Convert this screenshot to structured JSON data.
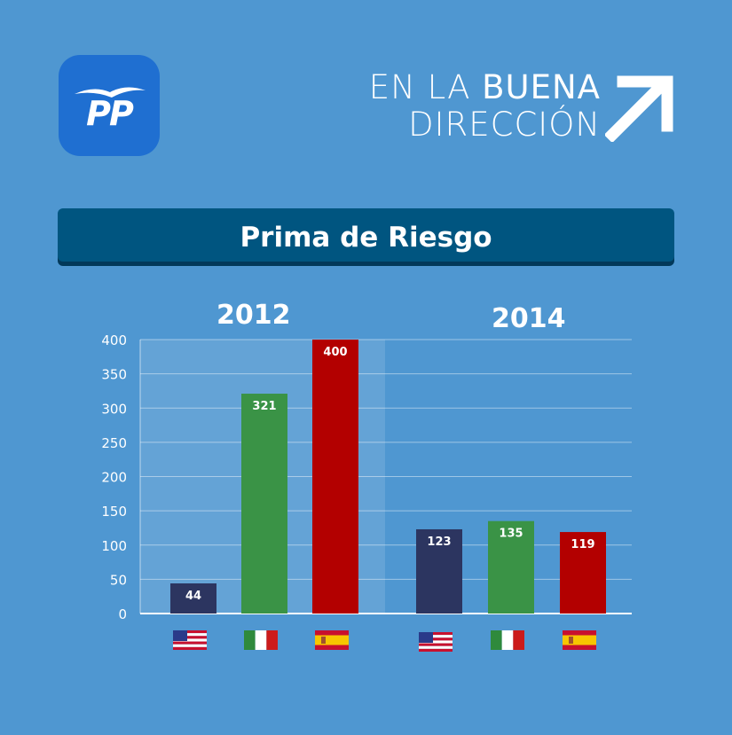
{
  "logo": {
    "text": "PP"
  },
  "slogan": {
    "line1_thin": "EN LA ",
    "line1_bold": "BUENA",
    "line2": "DIRECCIÓN"
  },
  "title": "Prima de Riesgo",
  "chart_data": {
    "type": "bar",
    "title": "Prima de Riesgo",
    "ylim": [
      0,
      400
    ],
    "yticks": [
      0,
      50,
      100,
      150,
      200,
      250,
      300,
      350,
      400
    ],
    "grid": true,
    "groups": [
      {
        "label": "2012",
        "categories": [
          "Estados Unidos",
          "Italia",
          "España"
        ],
        "values": [
          44,
          321,
          400
        ],
        "value_labels": [
          "44",
          "321",
          "400"
        ]
      },
      {
        "label": "2014",
        "categories": [
          "Estados Unidos",
          "Italia",
          "España"
        ],
        "values": [
          123,
          135,
          119
        ],
        "value_labels": [
          "123",
          "135",
          "119"
        ]
      }
    ],
    "colors": {
      "usa": "#2c3560",
      "italy": "#3a9346",
      "spain": "#b30000"
    },
    "category_icons": [
      "usa-flag-icon",
      "italy-flag-icon",
      "spain-flag-icon"
    ]
  }
}
